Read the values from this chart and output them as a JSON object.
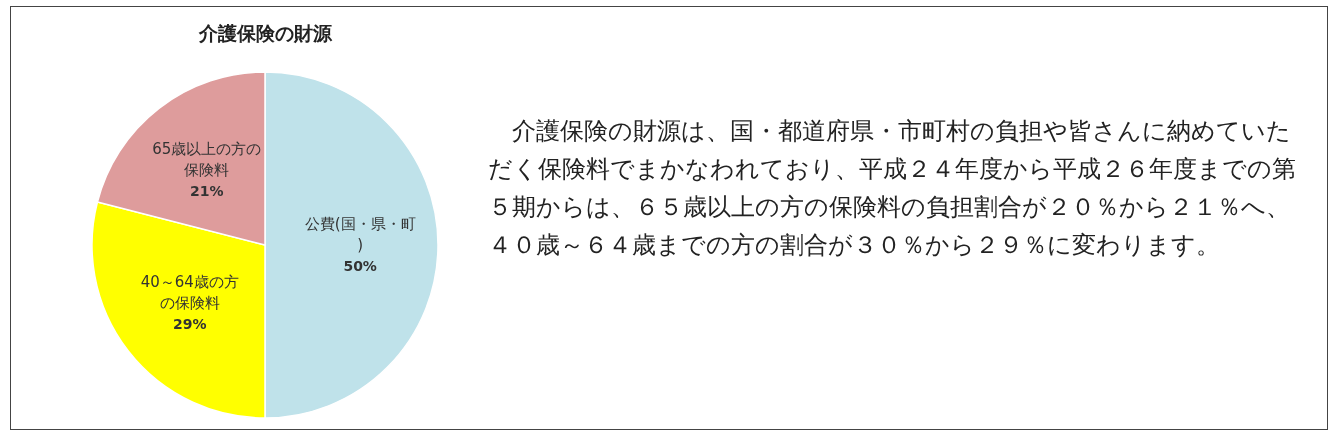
{
  "chart_data": {
    "type": "pie",
    "title": "介護保険の財源",
    "categories": [
      "公費(国・県・町)",
      "40～64歳の方の保険料",
      "65歳以上の方の保険料"
    ],
    "values": [
      50,
      29,
      21
    ],
    "value_labels": [
      "50%",
      "29%",
      "21%"
    ],
    "colors": [
      "#bfe2ea",
      "#ffff00",
      "#de9c9c"
    ],
    "annotations": [
      "　介護保険の財源は、国・都道府県・市町村の負担や皆さんに納めていただく保険料でまかなわれており、平成２４年度から平成２６年度までの第５期からは、６５歳以上の方の保険料の負担割合が２０％から２１％へ、４０歳～６４歳までの方の割合が３０％から２９％に変わります。"
    ]
  }
}
